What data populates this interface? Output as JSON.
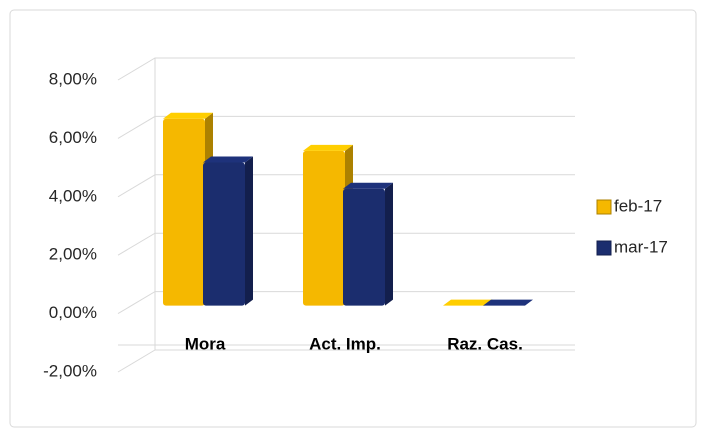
{
  "chart_data": {
    "type": "bar3d",
    "categories": [
      "Mora",
      "Act. Imp.",
      "Raz. Cas."
    ],
    "series": [
      {
        "name": "feb-17",
        "color": "#f5b800",
        "values": [
          6.4,
          5.3,
          0
        ]
      },
      {
        "name": "mar-17",
        "color": "#1b2d6e",
        "values": [
          4.9,
          4.0,
          0
        ]
      }
    ],
    "ylim": [
      -2,
      8
    ],
    "yticks": [
      {
        "value": -2,
        "label": "-2,00%"
      },
      {
        "value": 0,
        "label": "0,00%"
      },
      {
        "value": 2,
        "label": "2,00%"
      },
      {
        "value": 4,
        "label": "4,00%"
      },
      {
        "value": 6,
        "label": "6,00%"
      },
      {
        "value": 8,
        "label": "8,00%"
      }
    ],
    "grid": true,
    "legend": "right"
  }
}
